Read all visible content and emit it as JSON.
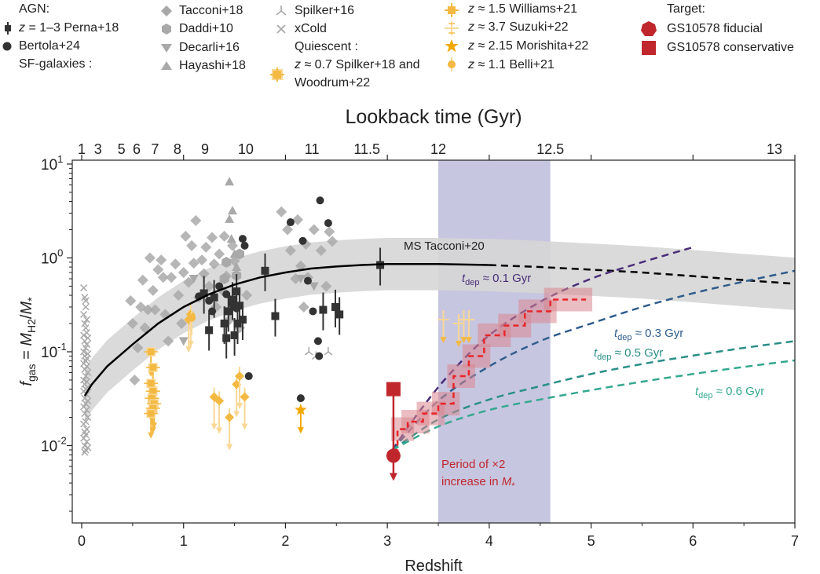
{
  "legend": {
    "agn_title": "AGN:",
    "agn_perna_italic": "z",
    "agn_perna": " = 1–3 Perna+18",
    "agn_bertola": "Bertola+24",
    "sf_title": "SF-galaxies :",
    "tacconi18": "Tacconi+18",
    "daddi10": "Daddi+10",
    "decarli16": "Decarli+16",
    "hayashi18": "Hayashi+18",
    "spilker16": "Spilker+16",
    "xcold": "xCold",
    "quiescent_title": "Quiescent :",
    "spilker18_italic": "z",
    "spilker18": " ≈ 0.7 Spilker+18 and",
    "woodrum22": "Woodrum+22",
    "williams21_italic": "z",
    "williams21": " ≈ 1.5 Williams+21",
    "suzuki22_italic": "z",
    "suzuki22": " ≈ 3.7 Suzuki+22",
    "morishita22_italic": "z",
    "morishita22": " ≈ 2.15 Morishita+22",
    "belli21_italic": "z",
    "belli21": " ≈ 1.1 Belli+21",
    "target_title": "Target:",
    "target_fiducial": "GS10578 fiducial",
    "target_conservative": "GS10578 conservative"
  },
  "chart_data": {
    "type": "scatter",
    "xlabel": "Redshift",
    "ylabel": "f_gas = M_H2/M_*",
    "top_axis_label": "Lookback time (Gyr)",
    "xlim": [
      0,
      7
    ],
    "ylim": [
      0.0015,
      11
    ],
    "yscale": "log",
    "x_ticks": [
      0,
      1,
      2,
      3,
      4,
      5,
      6,
      7
    ],
    "y_ticks": [
      {
        "base": "10",
        "exp": "-2",
        "value": 0.01
      },
      {
        "base": "10",
        "exp": "-1",
        "value": 0.1
      },
      {
        "base": "10",
        "exp": "0",
        "value": 1
      },
      {
        "base": "10",
        "exp": "1",
        "value": 10
      }
    ],
    "top_ticks": [
      {
        "label": "1",
        "z": 0.0
      },
      {
        "label": "3",
        "z": 0.16
      },
      {
        "label": "5",
        "z": 0.39
      },
      {
        "label": "6",
        "z": 0.54
      },
      {
        "label": "7",
        "z": 0.72
      },
      {
        "label": "8",
        "z": 0.94
      },
      {
        "label": "9",
        "z": 1.21
      },
      {
        "label": "10",
        "z": 1.61
      },
      {
        "label": "11",
        "z": 2.26
      },
      {
        "label": "11.5",
        "z": 2.8
      },
      {
        "label": "12",
        "z": 3.5
      },
      {
        "label": "12.5",
        "z": 4.6
      },
      {
        "label": "13",
        "z": 6.8
      }
    ],
    "shaded_band": {
      "x0": 3.5,
      "x1": 4.6,
      "color": "#b9b8d8"
    },
    "colors": {
      "agn": "#333333",
      "sf": "#a9a9a9",
      "quiescent": "#f4b942",
      "target": "#c0272d",
      "ms": "#000000"
    },
    "ms_relation": {
      "name": "MS Tacconi+20",
      "x": [
        0.03,
        0.1,
        0.25,
        0.5,
        0.75,
        1.0,
        1.25,
        1.5,
        1.75,
        2.0,
        2.25,
        2.5,
        2.75,
        3.0,
        3.25,
        3.5,
        3.75,
        4.0,
        4.5,
        5.0,
        5.5,
        6.0,
        6.5,
        7.0
      ],
      "y": [
        0.034,
        0.045,
        0.07,
        0.12,
        0.2,
        0.3,
        0.41,
        0.52,
        0.62,
        0.7,
        0.77,
        0.81,
        0.84,
        0.86,
        0.86,
        0.86,
        0.85,
        0.84,
        0.8,
        0.75,
        0.7,
        0.64,
        0.58,
        0.53
      ],
      "solid_until": 4.0,
      "band_factor": 1.9
    },
    "depletion_tracks": [
      {
        "label_italic": "t",
        "label_sub": "dep",
        "label": " ≈ 0.1 Gyr",
        "color": "#4a2d7a",
        "x": [
          3.05,
          3.3,
          3.6,
          4.0,
          4.5,
          5.0,
          5.5,
          6.0
        ],
        "y": [
          0.009,
          0.022,
          0.056,
          0.15,
          0.34,
          0.6,
          0.9,
          1.3
        ]
      },
      {
        "label_italic": "t",
        "label_sub": "dep",
        "label": " ≈ 0.3 Gyr",
        "color": "#2f5d8c",
        "x": [
          3.05,
          3.5,
          4.0,
          4.5,
          5.0,
          5.5,
          6.0,
          6.5,
          7.0
        ],
        "y": [
          0.009,
          0.03,
          0.07,
          0.13,
          0.2,
          0.3,
          0.42,
          0.56,
          0.73
        ]
      },
      {
        "label_italic": "t",
        "label_sub": "dep",
        "label": " ≈ 0.5 Gyr",
        "color": "#2a8f87",
        "x": [
          3.05,
          3.5,
          4.0,
          4.5,
          5.0,
          5.5,
          6.0,
          6.5,
          7.0
        ],
        "y": [
          0.009,
          0.019,
          0.031,
          0.043,
          0.058,
          0.074,
          0.091,
          0.11,
          0.13
        ]
      },
      {
        "label_italic": "t",
        "label_sub": "dep",
        "label": " ≈ 0.6 Gyr",
        "color": "#35a88f",
        "x": [
          3.05,
          3.5,
          4.0,
          4.5,
          5.0,
          5.5,
          6.0,
          6.5,
          7.0
        ],
        "y": [
          0.009,
          0.016,
          0.024,
          0.031,
          0.039,
          0.048,
          0.058,
          0.069,
          0.081
        ]
      }
    ],
    "target_history": {
      "color": "#e8252a",
      "steps_x": [
        3.05,
        3.1,
        3.2,
        3.35,
        3.5,
        3.65,
        3.8,
        3.95,
        4.15,
        4.35,
        4.6,
        4.95
      ],
      "steps_y": [
        0.009,
        0.015,
        0.018,
        0.022,
        0.028,
        0.055,
        0.09,
        0.15,
        0.19,
        0.27,
        0.36,
        0.36
      ],
      "annotation_line1": "Period of ×2",
      "annotation_line2_pre": "increase in ",
      "annotation_line2_italic": "M",
      "annotation_line2_sub": "*"
    },
    "target_points": [
      {
        "name": "GS10578 fiducial",
        "x": 3.06,
        "y": 0.0078
      },
      {
        "name": "GS10578 conservative",
        "x": 3.06,
        "y": 0.04
      }
    ],
    "series": [
      {
        "name": "Perna+18",
        "kind": "agn",
        "points": [
          [
            1.2,
            0.42
          ],
          [
            1.25,
            0.17
          ],
          [
            1.3,
            0.38
          ],
          [
            1.4,
            0.2
          ],
          [
            1.42,
            0.14
          ],
          [
            1.44,
            0.27
          ],
          [
            1.48,
            0.36
          ],
          [
            1.5,
            0.15
          ],
          [
            1.52,
            0.44
          ],
          [
            1.53,
            0.2
          ],
          [
            1.55,
            0.31
          ],
          [
            1.58,
            0.22
          ],
          [
            1.8,
            0.73
          ],
          [
            1.9,
            0.24
          ],
          [
            2.37,
            0.28
          ],
          [
            2.49,
            0.3
          ],
          [
            2.53,
            0.25
          ],
          [
            2.93,
            0.84
          ]
        ]
      },
      {
        "name": "Bertola+24",
        "kind": "agn_circle",
        "points": [
          [
            1.15,
            0.39
          ],
          [
            1.25,
            0.35
          ],
          [
            1.28,
            0.27
          ],
          [
            1.35,
            0.5
          ],
          [
            1.42,
            0.41
          ],
          [
            1.48,
            0.32
          ],
          [
            1.52,
            0.29
          ],
          [
            1.58,
            1.6
          ],
          [
            1.6,
            1.35
          ],
          [
            1.64,
            0.055
          ],
          [
            2.05,
            2.4
          ],
          [
            2.15,
            0.032
          ],
          [
            2.17,
            1.52
          ],
          [
            2.22,
            0.57
          ],
          [
            2.27,
            0.27
          ],
          [
            2.32,
            0.13
          ],
          [
            2.33,
            0.09
          ],
          [
            2.34,
            4.1
          ],
          [
            2.42,
            2.35
          ]
        ]
      },
      {
        "name": "Tacconi+18",
        "kind": "sf_diamond",
        "points": [
          [
            0.48,
            0.35
          ],
          [
            0.5,
            0.2
          ],
          [
            0.52,
            0.05
          ],
          [
            0.55,
            0.11
          ],
          [
            0.58,
            0.3
          ],
          [
            0.6,
            0.58
          ],
          [
            0.62,
            0.18
          ],
          [
            0.65,
            0.28
          ],
          [
            0.67,
            1.0
          ],
          [
            0.7,
            0.45
          ],
          [
            0.72,
            0.28
          ],
          [
            0.75,
            0.75
          ],
          [
            0.78,
            0.95
          ],
          [
            0.8,
            0.62
          ],
          [
            0.82,
            0.25
          ],
          [
            0.85,
            0.13
          ],
          [
            0.88,
            0.62
          ],
          [
            0.92,
            0.86
          ],
          [
            0.95,
            0.4
          ],
          [
            0.98,
            0.2
          ],
          [
            1.0,
            0.7
          ],
          [
            1.02,
            1.7
          ],
          [
            1.05,
            0.55
          ],
          [
            1.08,
            1.35
          ],
          [
            1.1,
            0.88
          ],
          [
            1.12,
            2.5
          ],
          [
            1.15,
            0.38
          ],
          [
            1.18,
            0.95
          ],
          [
            1.2,
            0.68
          ],
          [
            1.22,
            1.3
          ],
          [
            1.25,
            0.5
          ],
          [
            1.28,
            1.65
          ],
          [
            1.3,
            0.86
          ],
          [
            1.32,
            0.3
          ],
          [
            1.35,
            1.1
          ],
          [
            1.38,
            0.45
          ],
          [
            1.4,
            1.7
          ],
          [
            1.42,
            0.64
          ],
          [
            1.45,
            0.22
          ],
          [
            1.48,
            1.35
          ],
          [
            1.5,
            0.93
          ],
          [
            1.55,
            0.18
          ],
          [
            1.62,
            0.4
          ],
          [
            1.96,
            3.1
          ],
          [
            2.02,
            2.0
          ],
          [
            2.05,
            1.2
          ],
          [
            2.1,
            0.6
          ],
          [
            2.12,
            2.55
          ],
          [
            2.15,
            0.82
          ],
          [
            2.18,
            0.3
          ],
          [
            2.2,
            1.4
          ],
          [
            2.22,
            0.62
          ],
          [
            2.28,
            2.0
          ],
          [
            2.35,
            1.2
          ],
          [
            2.4,
            0.5
          ],
          [
            2.43,
            1.9
          ],
          [
            2.46,
            1.5
          ]
        ]
      },
      {
        "name": "Daddi+10",
        "kind": "sf_hexagon",
        "points": [
          [
            1.42,
            0.9
          ],
          [
            1.52,
            0.65
          ],
          [
            1.55,
            1.1
          ],
          [
            1.4,
            0.6
          ]
        ]
      },
      {
        "name": "Decarli+16",
        "kind": "sf_triangle_down",
        "points": [
          [
            1.0,
            0.13
          ],
          [
            1.1,
            0.6
          ],
          [
            2.15,
            0.6
          ],
          [
            2.28,
            0.5
          ]
        ]
      },
      {
        "name": "Hayashi+18",
        "kind": "sf_triangle_up",
        "points": [
          [
            1.45,
            6.5
          ],
          [
            1.45,
            2.6
          ],
          [
            1.48,
            3.2
          ],
          [
            1.5,
            1.1
          ],
          [
            1.52,
            0.8
          ],
          [
            1.47,
            1.6
          ]
        ]
      },
      {
        "name": "Spilker+16",
        "kind": "sf_tri",
        "points": [
          [
            2.23,
            0.1
          ],
          [
            2.3,
            0.09
          ],
          [
            2.42,
            0.1
          ]
        ]
      },
      {
        "name": "xCold",
        "kind": "sf_cross",
        "points": [
          [
            0.02,
            0.48
          ],
          [
            0.03,
            0.38
          ],
          [
            0.04,
            0.35
          ],
          [
            0.04,
            0.3
          ],
          [
            0.02,
            0.25
          ],
          [
            0.05,
            0.22
          ],
          [
            0.03,
            0.2
          ],
          [
            0.04,
            0.18
          ],
          [
            0.05,
            0.16
          ],
          [
            0.02,
            0.15
          ],
          [
            0.06,
            0.14
          ],
          [
            0.03,
            0.13
          ],
          [
            0.05,
            0.12
          ],
          [
            0.04,
            0.11
          ],
          [
            0.02,
            0.1
          ],
          [
            0.06,
            0.095
          ],
          [
            0.03,
            0.09
          ],
          [
            0.05,
            0.085
          ],
          [
            0.04,
            0.08
          ],
          [
            0.02,
            0.075
          ],
          [
            0.05,
            0.07
          ],
          [
            0.03,
            0.065
          ],
          [
            0.06,
            0.06
          ],
          [
            0.04,
            0.055
          ],
          [
            0.02,
            0.05
          ],
          [
            0.05,
            0.048
          ],
          [
            0.03,
            0.045
          ],
          [
            0.06,
            0.042
          ],
          [
            0.04,
            0.04
          ],
          [
            0.02,
            0.038
          ],
          [
            0.05,
            0.035
          ],
          [
            0.03,
            0.032
          ],
          [
            0.06,
            0.03
          ],
          [
            0.04,
            0.028
          ],
          [
            0.02,
            0.026
          ],
          [
            0.05,
            0.024
          ],
          [
            0.03,
            0.022
          ],
          [
            0.06,
            0.02
          ],
          [
            0.04,
            0.018
          ],
          [
            0.02,
            0.017
          ],
          [
            0.05,
            0.015
          ],
          [
            0.03,
            0.014
          ],
          [
            0.04,
            0.013
          ],
          [
            0.02,
            0.012
          ],
          [
            0.05,
            0.011
          ],
          [
            0.03,
            0.01
          ],
          [
            0.06,
            0.0095
          ],
          [
            0.04,
            0.009
          ],
          [
            0.03,
            0.0085
          ]
        ]
      },
      {
        "name": "Spilker+18/Woodrum+22",
        "kind": "q_square_err",
        "points": [
          [
            0.68,
            0.1
          ],
          [
            0.7,
            0.068
          ],
          [
            0.68,
            0.046
          ],
          [
            0.7,
            0.038
          ],
          [
            0.69,
            0.032
          ],
          [
            0.71,
            0.028
          ],
          [
            0.7,
            0.025
          ],
          [
            0.68,
            0.022
          ]
        ]
      },
      {
        "name": "Williams+21",
        "kind": "q_err_up",
        "points": [
          [
            1.05,
            0.22
          ],
          [
            1.07,
            0.25
          ],
          [
            1.3,
            0.033
          ],
          [
            1.35,
            0.03
          ],
          [
            1.45,
            0.02
          ],
          [
            1.52,
            0.045
          ],
          [
            1.55,
            0.055
          ],
          [
            1.6,
            0.033
          ]
        ]
      },
      {
        "name": "Suzuki+22",
        "kind": "q_err_limit",
        "points": [
          [
            3.55,
            0.22
          ],
          [
            3.7,
            0.2
          ],
          [
            3.75,
            0.22
          ],
          [
            3.8,
            0.22
          ]
        ]
      },
      {
        "name": "Morishita+22",
        "kind": "q_star",
        "points": [
          [
            2.15,
            0.024
          ]
        ]
      },
      {
        "name": "Belli+21",
        "kind": "q_circle",
        "points": [
          [
            1.08,
            0.23
          ]
        ]
      }
    ]
  }
}
